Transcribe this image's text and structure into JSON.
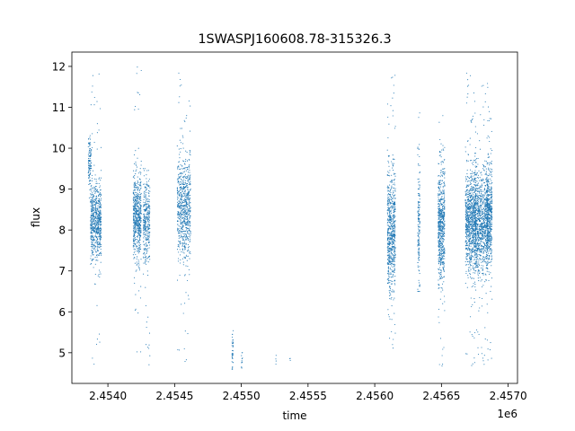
{
  "chart_data": {
    "type": "scatter",
    "title": "1SWASPJ160608.78-315326.3",
    "xlabel": "time",
    "ylabel": "flux",
    "x_offset_label": "1e6",
    "xlim": [
      2453730,
      2457070
    ],
    "ylim": [
      4.25,
      12.35
    ],
    "x_ticks": [
      2.454,
      2.4545,
      2.455,
      2.4555,
      2.456,
      2.4565,
      2.457
    ],
    "x_tick_labels": [
      "2.4540",
      "2.4545",
      "2.4550",
      "2.4555",
      "2.4560",
      "2.4565",
      "2.4570"
    ],
    "y_ticks": [
      5,
      6,
      7,
      8,
      9,
      10,
      11,
      12
    ],
    "y_tick_labels": [
      "5",
      "6",
      "7",
      "8",
      "9",
      "10",
      "11",
      "12"
    ],
    "grid": false,
    "point_color": "#1f77b4",
    "clusters": [
      {
        "x_center": 2453865,
        "x_width": 12,
        "flux_mean": 9.6,
        "flux_sd": 0.35,
        "n": 120,
        "flux_min": 8.6,
        "flux_max": 10.4
      },
      {
        "x_center": 2453910,
        "x_width": 40,
        "flux_mean": 8.2,
        "flux_sd": 0.45,
        "n": 700,
        "flux_min": 4.6,
        "flux_max": 12.0
      },
      {
        "x_center": 2454220,
        "x_width": 30,
        "flux_mean": 8.3,
        "flux_sd": 0.5,
        "n": 600,
        "flux_min": 5.0,
        "flux_max": 12.0
      },
      {
        "x_center": 2454290,
        "x_width": 25,
        "flux_mean": 8.2,
        "flux_sd": 0.5,
        "n": 350,
        "flux_min": 4.6,
        "flux_max": 9.5
      },
      {
        "x_center": 2454570,
        "x_width": 50,
        "flux_mean": 8.5,
        "flux_sd": 0.6,
        "n": 750,
        "flux_min": 4.7,
        "flux_max": 12.0
      },
      {
        "x_center": 2454935,
        "x_width": 5,
        "flux_mean": 5.0,
        "flux_sd": 0.25,
        "n": 40,
        "flux_min": 4.6,
        "flux_max": 5.7
      },
      {
        "x_center": 2455005,
        "x_width": 4,
        "flux_mean": 4.8,
        "flux_sd": 0.15,
        "n": 12,
        "flux_min": 4.6,
        "flux_max": 5.0
      },
      {
        "x_center": 2455260,
        "x_width": 2,
        "flux_mean": 4.85,
        "flux_sd": 0.08,
        "n": 4,
        "flux_min": 4.7,
        "flux_max": 5.0
      },
      {
        "x_center": 2455365,
        "x_width": 2,
        "flux_mean": 4.85,
        "flux_sd": 0.05,
        "n": 3,
        "flux_min": 4.7,
        "flux_max": 5.0
      },
      {
        "x_center": 2456125,
        "x_width": 30,
        "flux_mean": 8.0,
        "flux_sd": 0.7,
        "n": 700,
        "flux_min": 5.0,
        "flux_max": 11.8
      },
      {
        "x_center": 2456330,
        "x_width": 8,
        "flux_mean": 8.0,
        "flux_sd": 0.8,
        "n": 160,
        "flux_min": 6.5,
        "flux_max": 12.0
      },
      {
        "x_center": 2456500,
        "x_width": 25,
        "flux_mean": 8.1,
        "flux_sd": 0.7,
        "n": 650,
        "flux_min": 4.6,
        "flux_max": 11.0
      },
      {
        "x_center": 2456720,
        "x_width": 40,
        "flux_mean": 8.2,
        "flux_sd": 0.6,
        "n": 900,
        "flux_min": 4.6,
        "flux_max": 12.0
      },
      {
        "x_center": 2456800,
        "x_width": 50,
        "flux_mean": 8.2,
        "flux_sd": 0.6,
        "n": 1000,
        "flux_min": 4.6,
        "flux_max": 11.6
      },
      {
        "x_center": 2456860,
        "x_width": 20,
        "flux_mean": 8.3,
        "flux_sd": 0.6,
        "n": 500,
        "flux_min": 4.7,
        "flux_max": 11.9
      }
    ]
  }
}
